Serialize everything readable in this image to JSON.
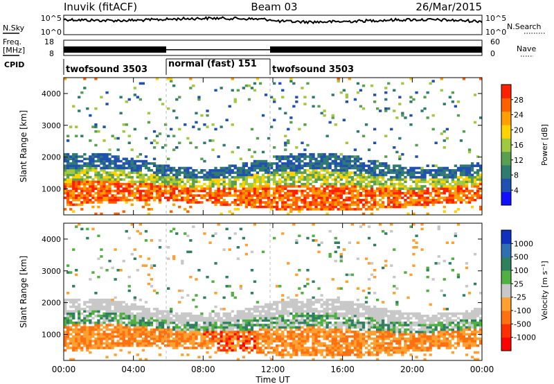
{
  "header": {
    "station": "Inuvik (fitACF)",
    "beam": "Beam 03",
    "date": "26/Mar/2015"
  },
  "noise_panel": {
    "left_label": "N.Sky",
    "right_label": "N.Search",
    "left_ticks": [
      "10^5",
      "10^0"
    ],
    "right_ticks": [
      "10^5",
      "10^0"
    ]
  },
  "freq_panel": {
    "left_label_1": "Freq.",
    "left_label_2": "[MHz]",
    "left_ticks": [
      "18",
      "8"
    ],
    "right_label": "Nave",
    "right_ticks": [
      "60",
      "0"
    ]
  },
  "cpid": {
    "label": "CPID",
    "segments": [
      {
        "name": "twofsound 3503",
        "start_hour": 0,
        "end_hour": 6
      },
      {
        "name": "normal (fast) 151",
        "start_hour": 6,
        "end_hour": 12
      },
      {
        "name": "twofsound 3503",
        "start_hour": 12,
        "end_hour": 24
      }
    ]
  },
  "axes": {
    "x_label": "Time UT",
    "x_ticks": [
      "00:00",
      "04:00",
      "08:00",
      "12:00",
      "16:00",
      "20:00",
      "00:00"
    ],
    "y_label": "Slant Range [km]",
    "y_ticks": [
      "1000",
      "2000",
      "3000",
      "4000"
    ]
  },
  "chart_data": [
    {
      "type": "heatmap",
      "x_range_hours": [
        0,
        24
      ],
      "ylim": [
        180,
        4500
      ],
      "ylabel": "Slant Range [km]",
      "colorbar": {
        "label": "Power [dB]",
        "ticks": [
          "28",
          "24",
          "20",
          "16",
          "12",
          "8",
          "4"
        ],
        "range": [
          0,
          30
        ],
        "colors": [
          "#1010ff",
          "#2050b0",
          "#307a70",
          "#58a050",
          "#a0c840",
          "#ffd200",
          "#ffa000",
          "#ff6000",
          "#ff2000"
        ]
      }
    },
    {
      "type": "heatmap",
      "x_range_hours": [
        0,
        24
      ],
      "ylim": [
        180,
        4500
      ],
      "ylabel": "Slant Range [km]",
      "colorbar": {
        "label": "Velocity [m s⁻¹]",
        "ticks": [
          "1000",
          "500",
          "100",
          "25",
          "-25",
          "-100",
          "-500",
          "-1000"
        ],
        "colors": [
          "#1030c0",
          "#3070b0",
          "#308060",
          "#50b040",
          "#c8c8c8",
          "#ffa030",
          "#ff7010",
          "#ff3000",
          "#ff0000"
        ]
      }
    }
  ]
}
